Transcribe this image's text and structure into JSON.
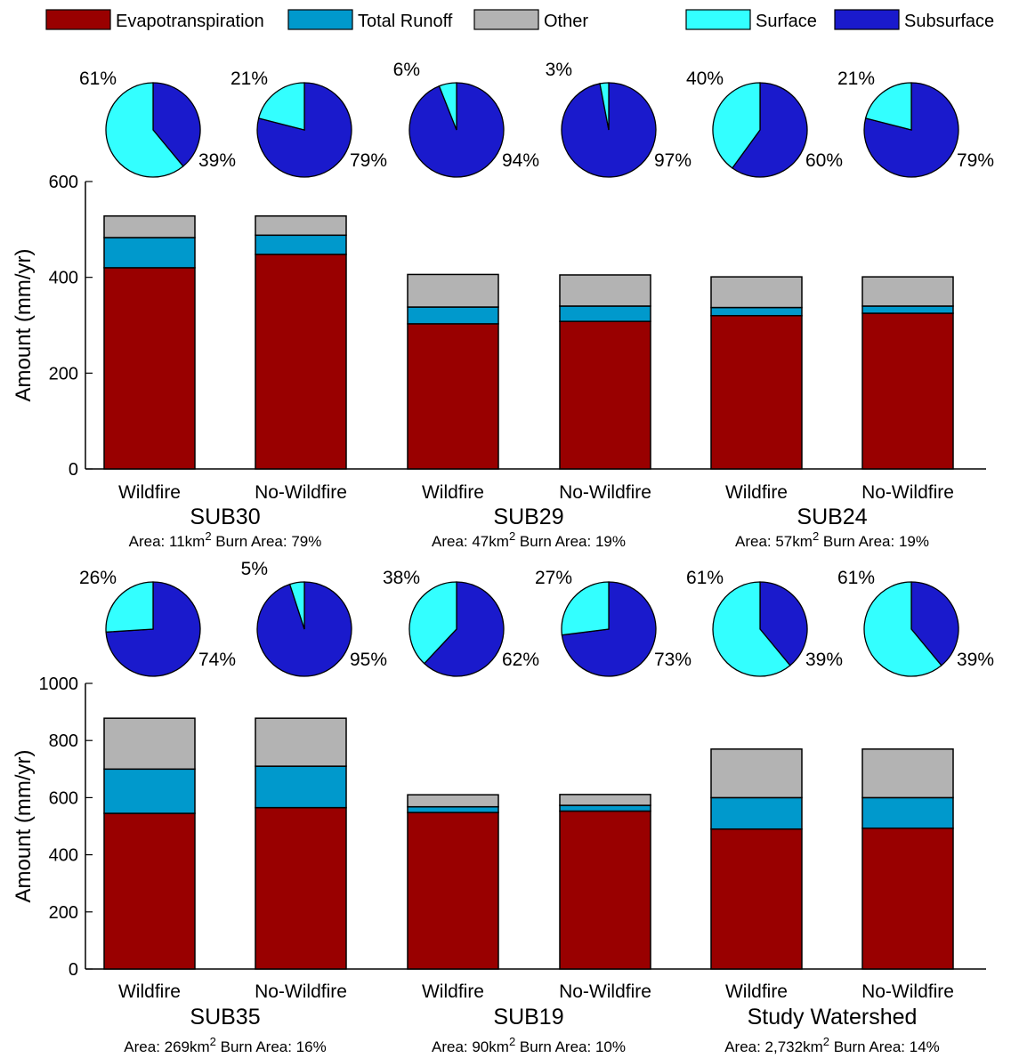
{
  "legend": {
    "items": [
      {
        "label": "Evapotranspiration",
        "color": "#990000"
      },
      {
        "label": "Total Runoff",
        "color": "#0099cc"
      },
      {
        "label": "Other",
        "color": "#b3b3b3"
      },
      {
        "label": "Surface",
        "color": "#33ffff"
      },
      {
        "label": "Subsurface",
        "color": "#1a1acc"
      }
    ]
  },
  "chart_data": [
    {
      "type": "bar",
      "stacked": true,
      "ylabel": "Amount (mm/yr)",
      "ylim": [
        0,
        600
      ],
      "yticks": [
        0,
        200,
        400,
        600
      ],
      "categories": [
        "Wildfire",
        "No-Wildfire",
        "Wildfire",
        "No-Wildfire",
        "Wildfire",
        "No-Wildfire"
      ],
      "series": [
        {
          "name": "Evapotranspiration",
          "values": [
            420,
            448,
            303,
            308,
            320,
            325
          ]
        },
        {
          "name": "Total Runoff",
          "values": [
            63,
            40,
            35,
            32,
            17,
            15
          ]
        },
        {
          "name": "Other",
          "values": [
            45,
            40,
            68,
            65,
            64,
            61
          ]
        }
      ],
      "groups": [
        {
          "name": "SUB30",
          "area": "11",
          "burn": "79%"
        },
        {
          "name": "SUB29",
          "area": "47",
          "burn": "19%"
        },
        {
          "name": "SUB24",
          "area": "57",
          "burn": "19%"
        }
      ],
      "pies": [
        {
          "surface": 61,
          "subsurface": 39,
          "surface_label": "61%",
          "subsurface_label": "39%"
        },
        {
          "surface": 21,
          "subsurface": 79,
          "surface_label": "21%",
          "subsurface_label": "79%"
        },
        {
          "surface": 6,
          "subsurface": 94,
          "surface_label": "6%",
          "subsurface_label": "94%"
        },
        {
          "surface": 3,
          "subsurface": 97,
          "surface_label": "3%",
          "subsurface_label": "97%"
        },
        {
          "surface": 40,
          "subsurface": 60,
          "surface_label": "40%",
          "subsurface_label": "60%"
        },
        {
          "surface": 21,
          "subsurface": 79,
          "surface_label": "21%",
          "subsurface_label": "79%"
        }
      ]
    },
    {
      "type": "bar",
      "stacked": true,
      "ylabel": "Amount (mm/yr)",
      "ylim": [
        0,
        1000
      ],
      "yticks": [
        0,
        200,
        400,
        600,
        800,
        1000
      ],
      "categories": [
        "Wildfire",
        "No-Wildfire",
        "Wildfire",
        "No-Wildfire",
        "Wildfire",
        "No-Wildfire"
      ],
      "series": [
        {
          "name": "Evapotranspiration",
          "values": [
            545,
            565,
            548,
            553,
            490,
            493
          ]
        },
        {
          "name": "Total Runoff",
          "values": [
            155,
            145,
            20,
            20,
            110,
            107
          ]
        },
        {
          "name": "Other",
          "values": [
            178,
            168,
            42,
            38,
            170,
            170
          ]
        }
      ],
      "groups": [
        {
          "name": "SUB35",
          "area": "269",
          "burn": "16%"
        },
        {
          "name": "SUB19",
          "area": "90",
          "burn": "10%"
        },
        {
          "name": "Study Watershed",
          "area": "2,732",
          "burn": "14%"
        }
      ],
      "pies": [
        {
          "surface": 26,
          "subsurface": 74,
          "surface_label": "26%",
          "subsurface_label": "74%"
        },
        {
          "surface": 5,
          "subsurface": 95,
          "surface_label": "5%",
          "subsurface_label": "95%"
        },
        {
          "surface": 38,
          "subsurface": 62,
          "surface_label": "38%",
          "subsurface_label": "62%"
        },
        {
          "surface": 27,
          "subsurface": 73,
          "surface_label": "27%",
          "subsurface_label": "73%"
        },
        {
          "surface": 61,
          "subsurface": 39,
          "surface_label": "61%",
          "subsurface_label": "39%"
        },
        {
          "surface": 61,
          "subsurface": 39,
          "surface_label": "61%",
          "subsurface_label": "39%"
        }
      ]
    }
  ],
  "group_caption": {
    "area_prefix": "Area: ",
    "area_unit": "km",
    "area_exp": "2",
    "burn_prefix": " Burn Area: "
  }
}
